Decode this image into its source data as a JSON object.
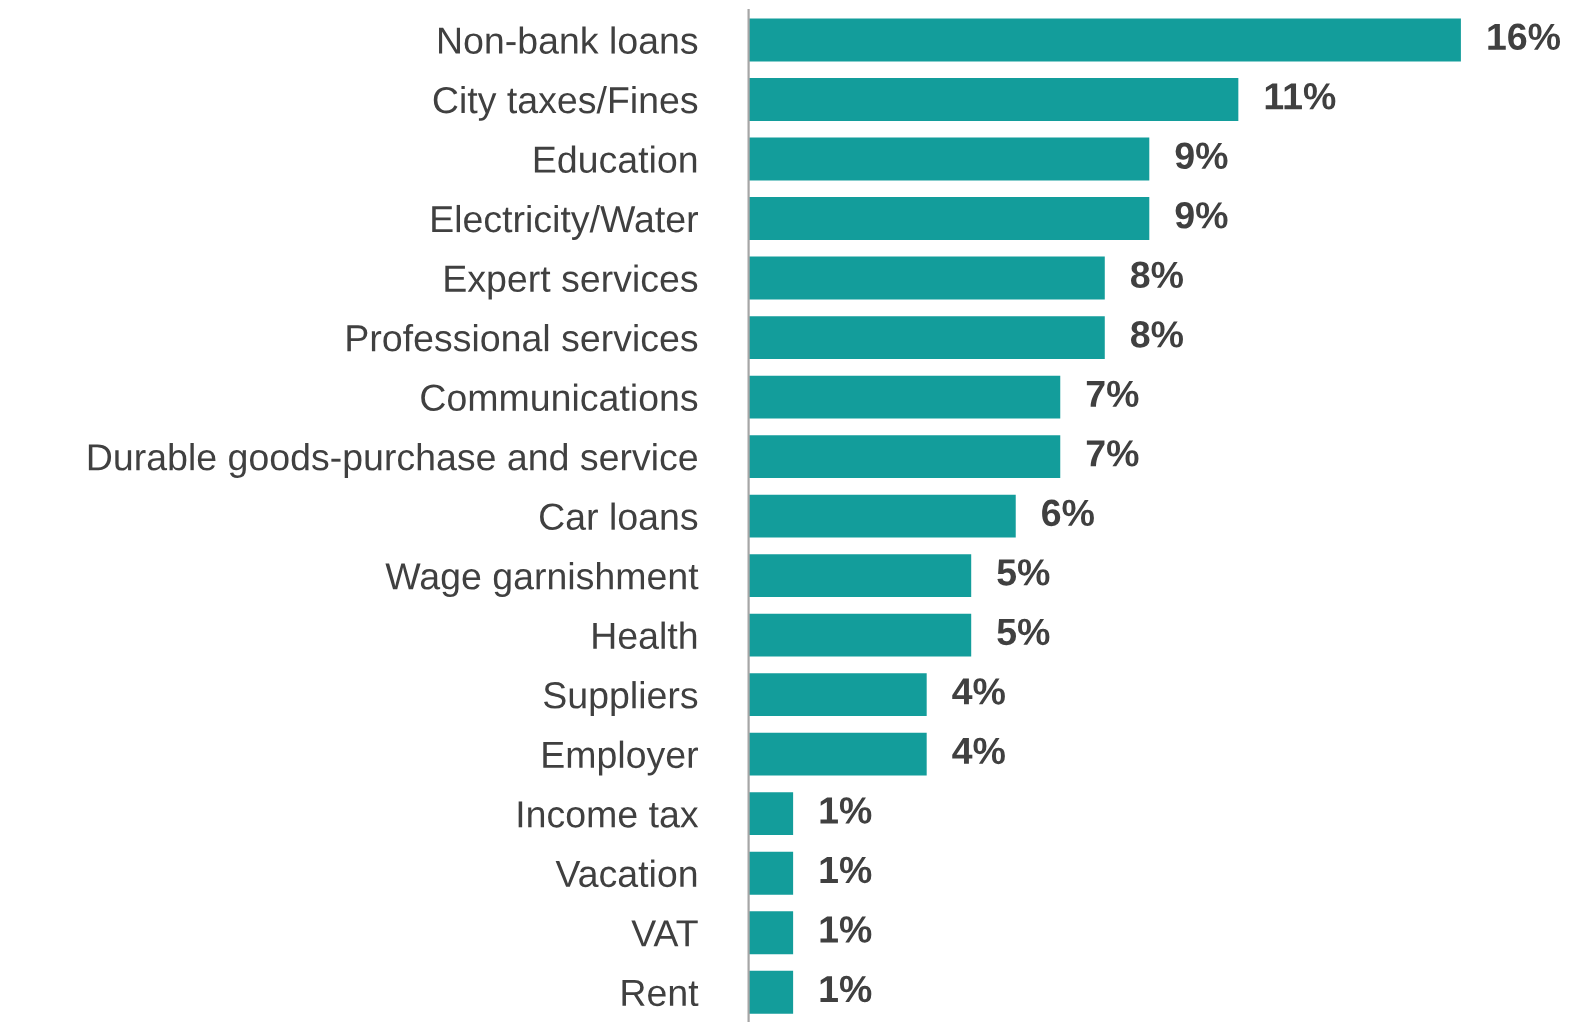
{
  "chart_data": {
    "type": "bar",
    "orientation": "horizontal",
    "categories": [
      "Non-bank loans",
      "City taxes/Fines",
      "Education",
      "Electricity/Water",
      "Expert services",
      "Professional services",
      "Communications",
      "Durable goods-purchase and service",
      "Car loans",
      "Wage garnishment",
      "Health",
      "Suppliers",
      "Employer",
      "Income tax",
      "Vacation",
      "VAT",
      "Rent"
    ],
    "values": [
      16,
      11,
      9,
      9,
      8,
      8,
      7,
      7,
      6,
      5,
      5,
      4,
      4,
      1,
      1,
      1,
      1
    ],
    "value_labels": [
      "16%",
      "11%",
      "9%",
      "9%",
      "8%",
      "8%",
      "7%",
      "7%",
      "6%",
      "5%",
      "5%",
      "4%",
      "4%",
      "1%",
      "1%",
      "1%",
      "1%"
    ],
    "color": "#139d9b",
    "grid": false,
    "legend": false
  }
}
